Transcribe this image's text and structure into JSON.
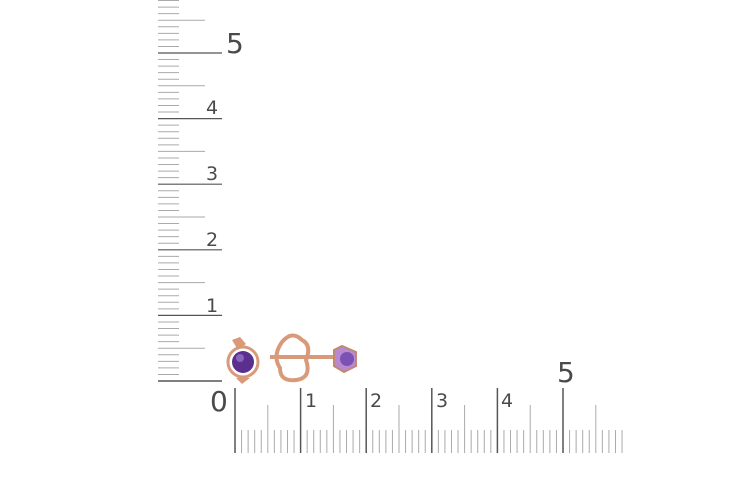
{
  "horizontal_ruler": {
    "labels": [
      "0",
      "1",
      "2",
      "3",
      "4",
      "5"
    ],
    "max_value": 5.9
  },
  "vertical_ruler": {
    "labels": [
      "1",
      "2",
      "3",
      "4",
      "5"
    ],
    "max_value": 5.8
  },
  "product": {
    "stone_color": "#6a3f9e",
    "metal_color": "#d99a7a"
  }
}
